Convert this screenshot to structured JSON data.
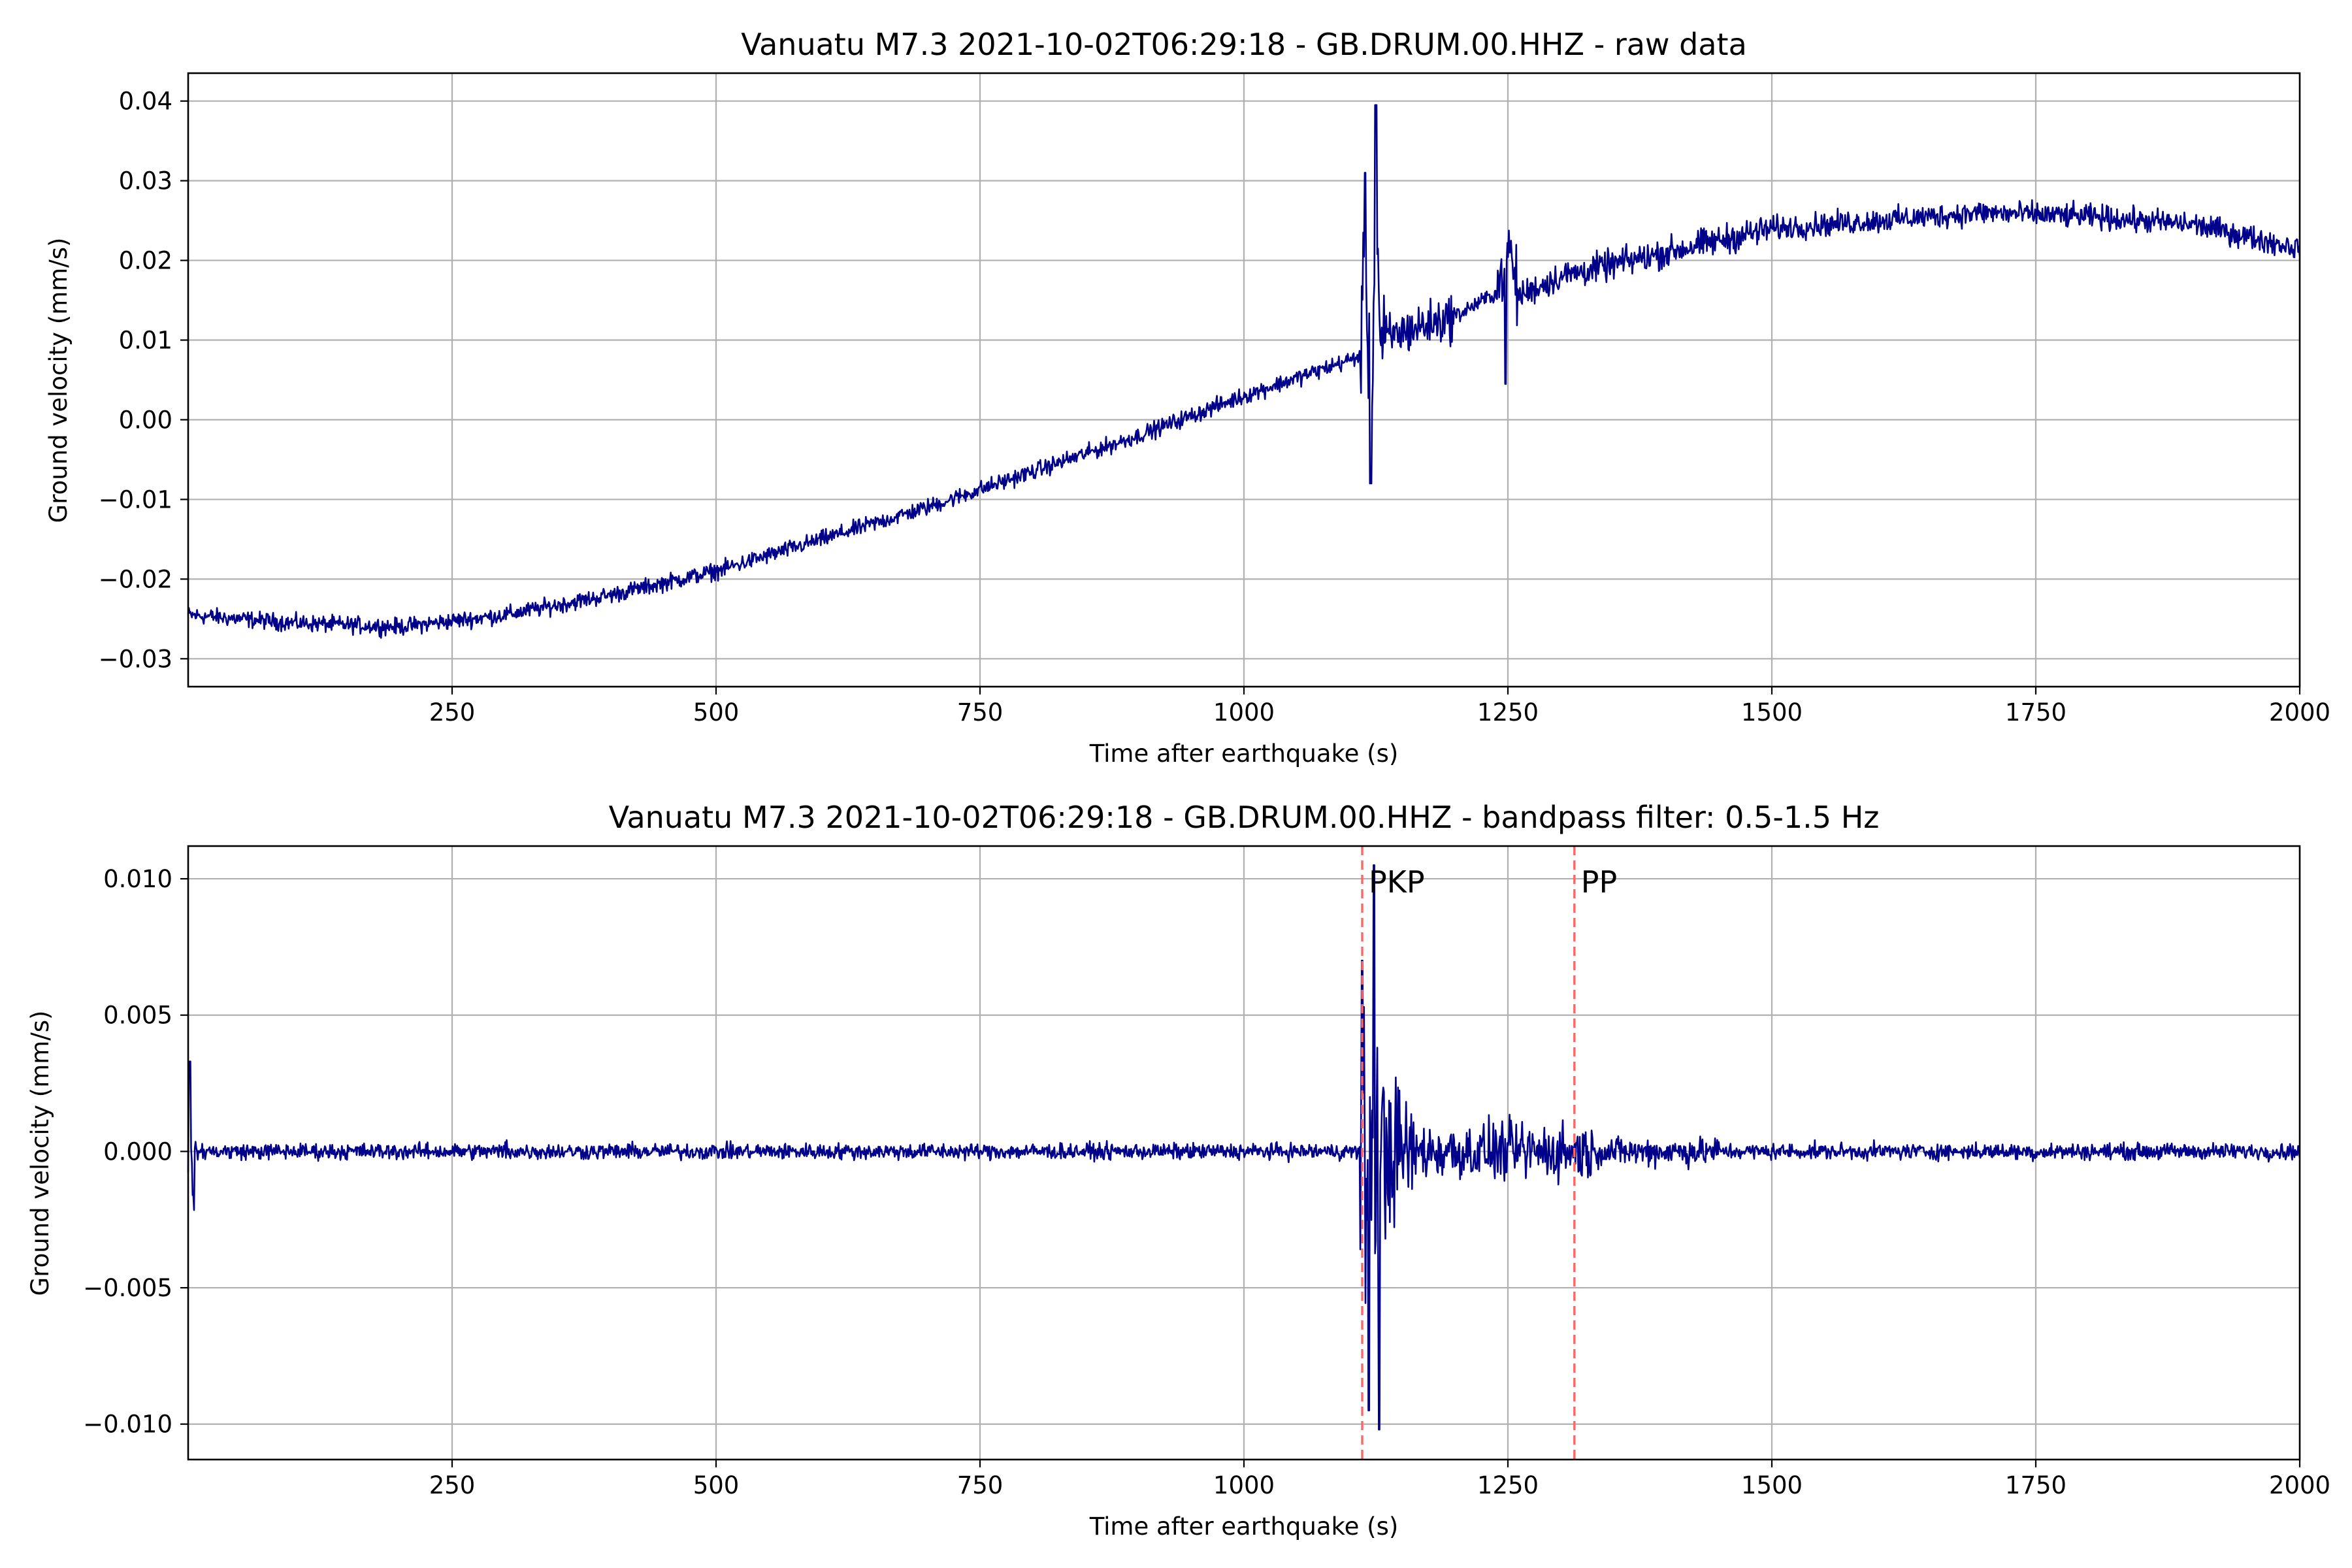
{
  "chart_data": [
    {
      "type": "line",
      "title": "Vanuatu M7.3 2021-10-02T06:29:18 - GB.DRUM.00.HHZ - raw data",
      "xlabel": "Time after earthquake (s)",
      "ylabel": "Ground velocity (mm/s)",
      "xlim": [
        0,
        2000
      ],
      "ylim": [
        -0.0335,
        0.0435
      ],
      "xticks": [
        250,
        500,
        750,
        1000,
        1250,
        1500,
        1750,
        2000
      ],
      "xtick_labels": [
        "250",
        "500",
        "750",
        "1000",
        "1250",
        "1500",
        "1750",
        "2000"
      ],
      "yticks": [
        -0.03,
        -0.02,
        -0.01,
        0.0,
        0.01,
        0.02,
        0.03,
        0.04
      ],
      "ytick_labels": [
        "−0.03",
        "−0.02",
        "−0.01",
        "0.00",
        "0.01",
        "0.02",
        "0.03",
        "0.04"
      ],
      "grid": true,
      "series": [
        {
          "color": "#00008b",
          "x": [
            0,
            100,
            200,
            300,
            400,
            500,
            600,
            700,
            800,
            900,
            1000,
            1100,
            1110,
            1115,
            1120,
            1125,
            1130,
            1150,
            1200,
            1240,
            1250,
            1260,
            1300,
            1400,
            1500,
            1600,
            1700,
            1800,
            1900,
            2000
          ],
          "y": [
            -0.0245,
            -0.0255,
            -0.026,
            -0.0245,
            -0.022,
            -0.019,
            -0.015,
            -0.011,
            -0.0065,
            -0.002,
            0.003,
            0.0075,
            0.008,
            0.031,
            -0.008,
            0.0395,
            0.01,
            0.011,
            0.013,
            0.016,
            0.022,
            0.0155,
            0.018,
            0.021,
            0.024,
            0.025,
            0.026,
            0.0255,
            0.0245,
            0.0215
          ]
        }
      ]
    },
    {
      "type": "line",
      "title": "Vanuatu M7.3 2021-10-02T06:29:18 - GB.DRUM.00.HHZ - bandpass filter: 0.5-1.5 Hz",
      "xlabel": "Time after earthquake (s)",
      "ylabel": "Ground velocity (mm/s)",
      "xlim": [
        0,
        2000
      ],
      "ylim": [
        -0.0113,
        0.0112
      ],
      "xticks": [
        250,
        500,
        750,
        1000,
        1250,
        1500,
        1750,
        2000
      ],
      "xtick_labels": [
        "250",
        "500",
        "750",
        "1000",
        "1250",
        "1500",
        "1750",
        "2000"
      ],
      "yticks": [
        -0.01,
        -0.005,
        0.0,
        0.005,
        0.01
      ],
      "ytick_labels": [
        "−0.010",
        "−0.005",
        "0.000",
        "0.005",
        "0.010"
      ],
      "grid": true,
      "series": [
        {
          "color": "#00008b",
          "x": [
            0,
            2,
            5,
            300,
            600,
            900,
            1100,
            1112,
            1118,
            1123,
            1128,
            1135,
            1150,
            1175,
            1200,
            1250,
            1300,
            1315,
            1350,
            1400,
            1500,
            1750,
            2000
          ],
          "y": [
            0.0,
            0.0033,
            -0.0016,
            0.0007,
            0.0005,
            0.0006,
            0.0003,
            0.007,
            -0.0095,
            0.0105,
            -0.0102,
            0.006,
            0.0035,
            0.002,
            0.0013,
            0.0015,
            0.0022,
            0.0012,
            0.0008,
            0.0005,
            0.0004,
            0.0007,
            0.0002
          ]
        }
      ],
      "annotations": [
        {
          "text": "PKP",
          "x": 1112,
          "color": "#ff6666"
        },
        {
          "text": "PP",
          "x": 1313,
          "color": "#ff6666"
        }
      ]
    }
  ]
}
